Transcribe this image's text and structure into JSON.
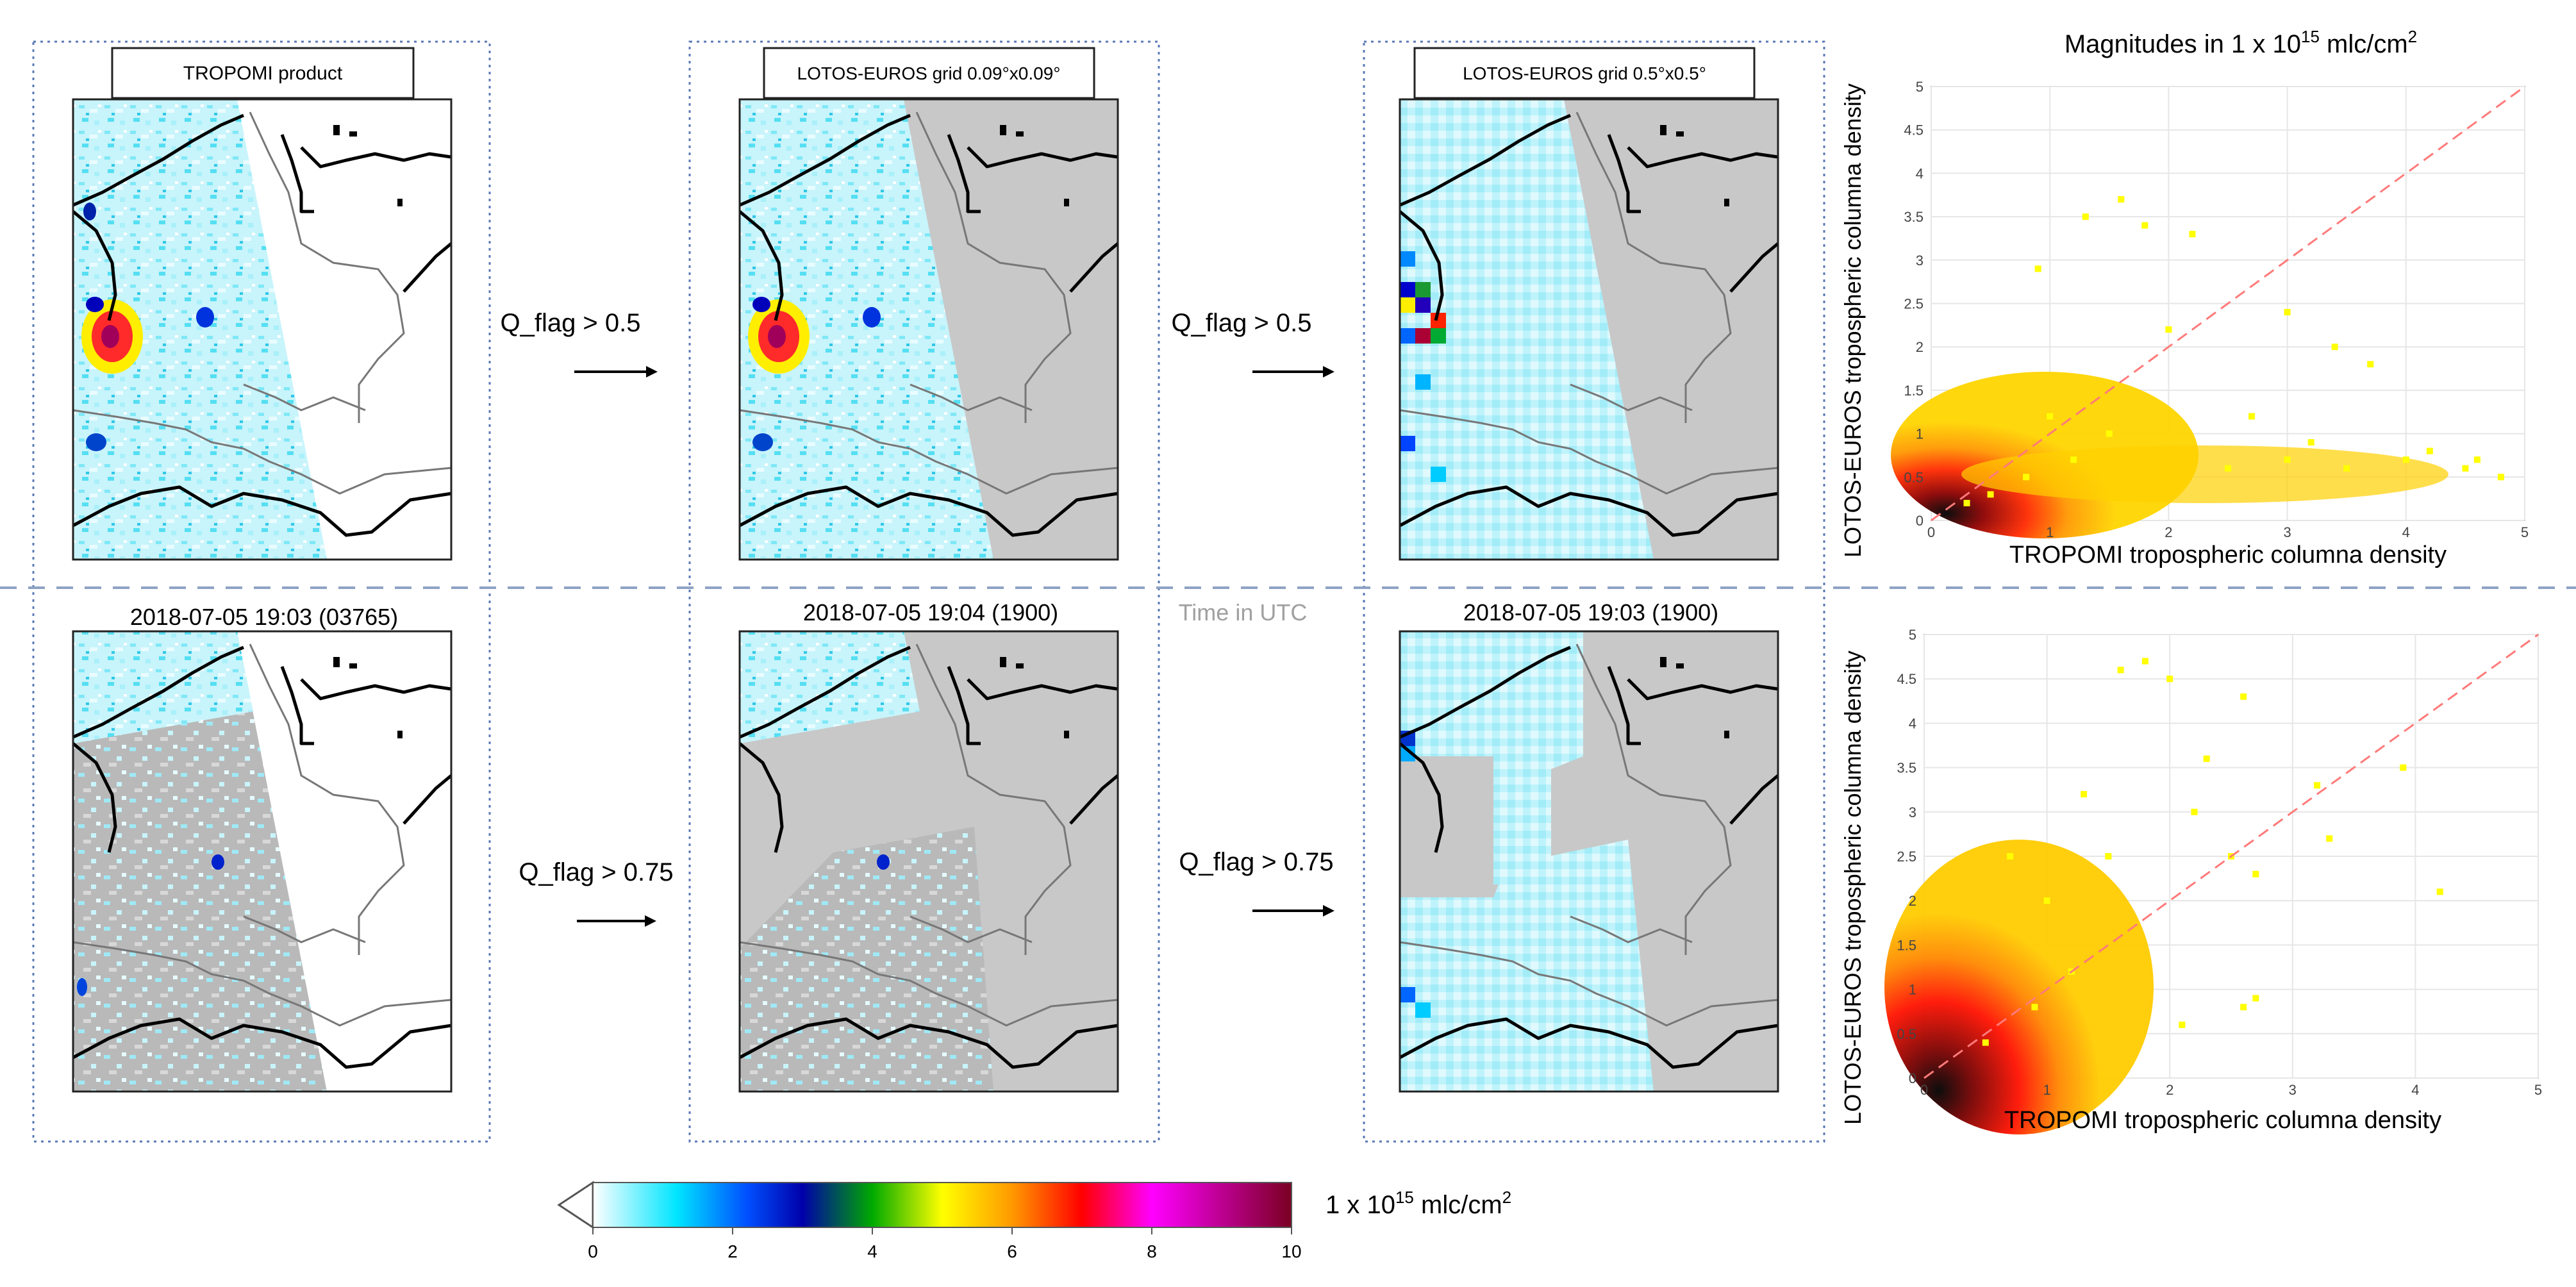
{
  "panel_labels": {
    "tropomi": "TROPOMI product",
    "lotos_fine": "LOTOS-EUROS grid 0.09°x0.09°",
    "lotos_coarse": "LOTOS-EUROS grid 0.5°x0.5°"
  },
  "timestamps": {
    "tropomi": "2018-07-05 19:03  (03765)",
    "lotos_fine": "2018-07-05 19:04  (1900)",
    "lotos_coarse": "2018-07-05 19:03  (1900)"
  },
  "time_note": "Time in UTC",
  "filters": {
    "top_left": "Q_flag > 0.5",
    "top_right": "Q_flag > 0.5",
    "bottom_left": "Q_flag > 0.75",
    "bottom_right": "Q_flag > 0.75"
  },
  "colorbar": {
    "ticks": [
      "0",
      "2",
      "4",
      "6",
      "8",
      "10"
    ],
    "unit_prefix": "1 x 10",
    "unit_exp": "15",
    "unit_suffix": " mlc/cm",
    "unit_sup": "2",
    "colors": [
      "#ffffff",
      "#00e5ff",
      "#0000cc",
      "#00aa00",
      "#ffff00",
      "#ff8800",
      "#ff0000",
      "#ff00ff",
      "#8b0000"
    ]
  },
  "chart_data": [
    {
      "type": "scatter",
      "title_prefix": "Magnitudes in 1 x 10",
      "title_exp": "15",
      "title_suffix": " mlc/cm",
      "title_sup": "2",
      "xlabel": "TROPOMI tropospheric columna density",
      "ylabel": "LOTOS-EUROS  tropospheric columna density",
      "xlim": [
        0,
        5
      ],
      "ylim": [
        0,
        5
      ],
      "ticks": [
        "0",
        "0.5",
        "1",
        "1.5",
        "2",
        "2.5",
        "3",
        "3.5",
        "4",
        "4.5",
        "5"
      ],
      "xticks": [
        "0",
        "1",
        "2",
        "3",
        "4",
        "5"
      ],
      "reference_line": "1:1",
      "density_colors": [
        "#000000",
        "#8b0000",
        "#ff0000",
        "#ff8000",
        "#ffd700",
        "#ffff00"
      ],
      "description": "Q_flag > 0.5, 0.5°x0.5° grid",
      "points": [
        [
          0.5,
          0.3
        ],
        [
          0.8,
          0.5
        ],
        [
          1.2,
          0.7
        ],
        [
          1.0,
          1.2
        ],
        [
          1.5,
          1.0
        ],
        [
          0.3,
          0.2
        ],
        [
          2.5,
          0.6
        ],
        [
          3.0,
          0.7
        ],
        [
          3.5,
          0.6
        ],
        [
          4.0,
          0.7
        ],
        [
          4.5,
          0.6
        ],
        [
          4.8,
          0.5
        ],
        [
          1.6,
          3.7
        ],
        [
          1.8,
          3.4
        ],
        [
          2.2,
          3.3
        ],
        [
          3.0,
          2.4
        ],
        [
          3.4,
          2.0
        ],
        [
          3.7,
          1.8
        ],
        [
          0.9,
          2.9
        ],
        [
          1.3,
          3.5
        ],
        [
          2.0,
          2.2
        ],
        [
          2.7,
          1.2
        ],
        [
          3.2,
          0.9
        ],
        [
          4.2,
          0.8
        ],
        [
          4.6,
          0.7
        ]
      ]
    },
    {
      "type": "scatter",
      "title_prefix": "",
      "xlabel": "TROPOMI tropospheric columna density",
      "ylabel": "LOTOS-EUROS  tropospheric columna density",
      "xlim": [
        0,
        5
      ],
      "ylim": [
        0,
        5
      ],
      "ticks": [
        "0",
        "0.5",
        "1",
        "1.5",
        "2",
        "2.5",
        "3",
        "3.5",
        "4",
        "4.5",
        "5"
      ],
      "xticks": [
        "0",
        "1",
        "2",
        "3",
        "4",
        "5"
      ],
      "reference_line": "1:1",
      "density_colors": [
        "#000000",
        "#8b0000",
        "#ff0000",
        "#ff8000",
        "#ffd700",
        "#ffff00"
      ],
      "description": "Q_flag > 0.75, 0.5°x0.5° grid",
      "points": [
        [
          0.5,
          0.4
        ],
        [
          0.9,
          0.8
        ],
        [
          1.2,
          1.2
        ],
        [
          1.0,
          2.0
        ],
        [
          1.5,
          2.5
        ],
        [
          1.6,
          4.6
        ],
        [
          1.8,
          4.7
        ],
        [
          2.0,
          4.5
        ],
        [
          2.6,
          4.3
        ],
        [
          2.3,
          3.6
        ],
        [
          2.2,
          3.0
        ],
        [
          2.5,
          2.5
        ],
        [
          2.7,
          2.3
        ],
        [
          3.2,
          3.3
        ],
        [
          3.3,
          2.7
        ],
        [
          3.9,
          3.5
        ],
        [
          4.2,
          2.1
        ],
        [
          2.6,
          0.8
        ],
        [
          2.7,
          0.9
        ],
        [
          2.1,
          0.6
        ],
        [
          1.3,
          3.2
        ],
        [
          0.7,
          2.5
        ]
      ]
    }
  ]
}
